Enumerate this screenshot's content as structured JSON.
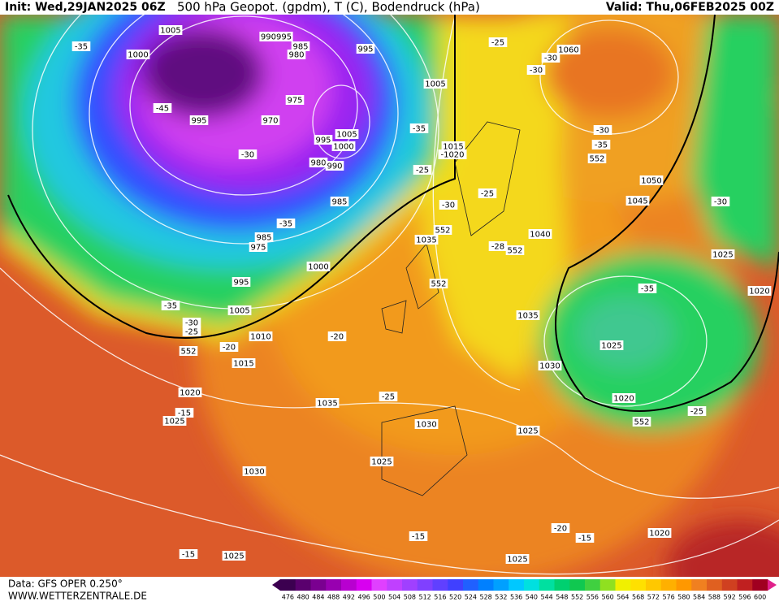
{
  "header": {
    "init": "Init: Wed,29JAN2025 06Z",
    "title": "500 hPa Geopot. (gpdm), T (C), Bodendruck (hPa)",
    "valid": "Valid: Thu,06FEB2025 00Z"
  },
  "footer": {
    "data": "Data: GFS OPER 0.250°",
    "website": "WWW.WETTERZENTRALE.DE"
  },
  "colorbar": {
    "labels": [
      476,
      480,
      484,
      488,
      492,
      496,
      500,
      504,
      508,
      512,
      516,
      520,
      524,
      528,
      532,
      536,
      540,
      544,
      548,
      552,
      556,
      560,
      564,
      568,
      572,
      576,
      580,
      584,
      588,
      592,
      596,
      600
    ],
    "colors": [
      "#3c0050",
      "#5a006e",
      "#7a0090",
      "#9800b0",
      "#b800d0",
      "#d800f0",
      "#e040ff",
      "#c040ff",
      "#a040ff",
      "#8040ff",
      "#6040ff",
      "#4040ff",
      "#2060ff",
      "#0080ff",
      "#00a0ff",
      "#00c8ff",
      "#00e0e0",
      "#00e0a0",
      "#00d070",
      "#10c850",
      "#40d040",
      "#90e020",
      "#f0f000",
      "#ffe000",
      "#ffc800",
      "#ffb000",
      "#ff9800",
      "#f08020",
      "#e06020",
      "#d04020",
      "#c02020",
      "#a00020"
    ]
  },
  "map_labels": [
    "1005",
    "1000",
    "990995",
    "985",
    "980",
    "995",
    "-35",
    "-45",
    "995",
    "975",
    "970",
    "1005",
    "-35",
    "1005",
    "1000",
    "995",
    "-30",
    "980",
    "990",
    "1015",
    "-1020",
    "-25",
    "985",
    "-30",
    "-35",
    "985",
    "975",
    "1035",
    "552",
    "1000",
    "995",
    "552",
    "-25",
    "-30",
    "1060",
    "-30",
    "-30",
    "-35",
    "552",
    "1050",
    "1045",
    "-30",
    "-25",
    "1040",
    "-28",
    "552",
    "1025",
    "1020",
    "-35",
    "-35",
    "-30",
    "-25",
    "1005",
    "1010",
    "-20",
    "552",
    "-20",
    "1015",
    "1035",
    "1030",
    "1025",
    "1020",
    "-25",
    "1020",
    "-15",
    "1025",
    "1035",
    "1030",
    "1025",
    "552",
    "-25",
    "1030",
    "1025",
    "-20",
    "-15",
    "-15",
    "1020",
    "-15",
    "1025",
    "1025"
  ]
}
